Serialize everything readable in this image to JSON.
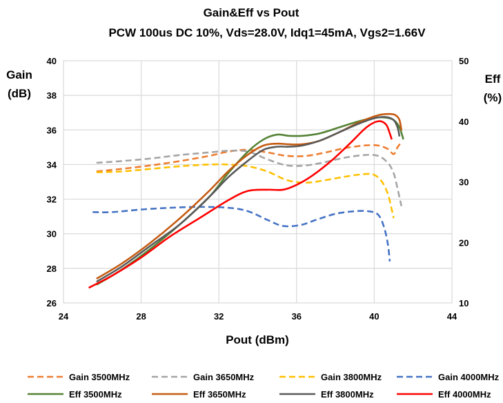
{
  "chart_data": {
    "type": "line",
    "title": "Gain&Eff vs Pout",
    "subtitle": "PCW 100us DC 10%, Vds=28.0V, Idq1=45mA, Vgs2=1.66V",
    "xlabel": "Pout (dBm)",
    "ylabel_left_line1": "Gain",
    "ylabel_left_line2": "(dB)",
    "ylabel_right_line1": "Eff",
    "ylabel_right_line2": "(%)",
    "xlim": [
      24,
      44
    ],
    "ylim_left": [
      26,
      40
    ],
    "ylim_right": [
      10,
      50
    ],
    "x_ticks": [
      24,
      28,
      32,
      36,
      40,
      44
    ],
    "y_left_ticks": [
      26,
      28,
      30,
      32,
      34,
      36,
      38,
      40
    ],
    "y_right_ticks": [
      10,
      20,
      30,
      40,
      50
    ],
    "grid": true,
    "legend_position": "bottom",
    "series": [
      {
        "name": "Gain 3500MHz",
        "axis": "left",
        "style": "dashed",
        "color": "#ED7D31",
        "x": [
          25.7,
          27,
          28.5,
          30,
          31.5,
          32.5,
          33.5,
          34.5,
          35.5,
          36.5,
          37.5,
          38.5,
          39.5,
          40.2,
          40.7,
          41.0,
          41.2,
          41.4
        ],
        "y": [
          33.6,
          33.75,
          33.95,
          34.2,
          34.5,
          34.75,
          34.85,
          34.7,
          34.5,
          34.5,
          34.7,
          34.95,
          35.1,
          35.1,
          34.9,
          34.6,
          35.0,
          35.3
        ]
      },
      {
        "name": "Gain 3650MHz",
        "axis": "left",
        "style": "dashed",
        "color": "#A5A5A5",
        "x": [
          25.7,
          27,
          28.5,
          30,
          31.5,
          32.5,
          33.5,
          34.5,
          35.5,
          36.5,
          37.5,
          38.5,
          39.5,
          40.2,
          40.7,
          41.0,
          41.2,
          41.4
        ],
        "y": [
          34.1,
          34.2,
          34.35,
          34.55,
          34.7,
          34.8,
          34.75,
          34.3,
          33.95,
          33.95,
          34.15,
          34.4,
          34.55,
          34.5,
          34.1,
          33.5,
          32.6,
          31.6
        ]
      },
      {
        "name": "Gain 3800MHz",
        "axis": "left",
        "style": "dashed",
        "color": "#FFC000",
        "x": [
          25.7,
          27,
          28.5,
          30,
          31.5,
          32.5,
          33.5,
          34.5,
          35.5,
          36.5,
          37.5,
          38.5,
          39.5,
          40.0,
          40.4,
          40.7,
          40.9,
          41.0
        ],
        "y": [
          33.55,
          33.6,
          33.75,
          33.9,
          34.0,
          34.0,
          33.9,
          33.6,
          33.1,
          32.95,
          33.1,
          33.3,
          33.45,
          33.4,
          33.0,
          32.3,
          31.4,
          30.9
        ]
      },
      {
        "name": "Gain 4000MHz",
        "axis": "left",
        "style": "dashed",
        "color": "#4472C4",
        "x": [
          25.5,
          26.5,
          28,
          29.5,
          31,
          32.5,
          33.5,
          34.5,
          35.3,
          36.2,
          37.0,
          38.0,
          39.0,
          39.7,
          40.2,
          40.5,
          40.7,
          40.8
        ],
        "y": [
          31.25,
          31.25,
          31.4,
          31.5,
          31.55,
          31.5,
          31.3,
          30.8,
          30.45,
          30.5,
          30.8,
          31.15,
          31.3,
          31.3,
          31.1,
          30.4,
          29.4,
          28.4
        ]
      },
      {
        "name": "Eff 3500MHz",
        "axis": "right",
        "style": "solid",
        "color": "#548235",
        "x": [
          25.7,
          27,
          28.5,
          30,
          31.5,
          32.5,
          33.5,
          34.3,
          35.0,
          35.6,
          36.3,
          37.2,
          38.2,
          39.2,
          40.0,
          40.6,
          41.0,
          41.3,
          41.5
        ],
        "y": [
          13.0,
          15.5,
          19.0,
          23.0,
          27.5,
          31.5,
          35.0,
          37.0,
          37.8,
          37.6,
          37.6,
          38.0,
          39.0,
          40.0,
          40.6,
          40.6,
          40.2,
          39.0,
          37.0
        ]
      },
      {
        "name": "Eff 3650MHz",
        "axis": "right",
        "style": "solid",
        "color": "#C55A11",
        "x": [
          25.7,
          27,
          28.5,
          30,
          31.5,
          32.5,
          33.5,
          34.3,
          35.0,
          35.6,
          36.3,
          37.2,
          38.2,
          39.2,
          40.2,
          40.8,
          41.1,
          41.3,
          41.4
        ],
        "y": [
          14.0,
          16.5,
          20.0,
          24.0,
          28.5,
          31.8,
          34.5,
          36.0,
          36.3,
          36.2,
          36.2,
          36.8,
          38.2,
          39.8,
          41.0,
          41.2,
          41.0,
          40.2,
          38.5
        ]
      },
      {
        "name": "Eff 3800MHz",
        "axis": "right",
        "style": "solid",
        "color": "#595959",
        "x": [
          25.7,
          27,
          28.5,
          30,
          31.5,
          32.5,
          33.5,
          34.3,
          35.0,
          35.6,
          36.3,
          37.2,
          38.2,
          39.2,
          40.0,
          40.6,
          41.0,
          41.2,
          41.3
        ],
        "y": [
          13.5,
          16.0,
          19.5,
          23.0,
          27.5,
          30.8,
          33.5,
          35.3,
          35.8,
          35.8,
          36.0,
          36.8,
          38.2,
          39.6,
          40.5,
          40.7,
          40.2,
          39.0,
          37.5
        ]
      },
      {
        "name": "Eff 4000MHz",
        "axis": "right",
        "style": "solid",
        "color": "#FF0000",
        "x": [
          25.3,
          26.5,
          28,
          29.5,
          31,
          32.5,
          33.5,
          34.5,
          35.3,
          36.0,
          36.8,
          37.8,
          38.8,
          39.6,
          40.2,
          40.6,
          40.8,
          40.9
        ],
        "y": [
          12.5,
          14.5,
          17.5,
          21.0,
          24.0,
          27.0,
          28.5,
          28.7,
          28.7,
          29.5,
          31.0,
          33.5,
          36.5,
          39.0,
          40.0,
          39.5,
          38.0,
          37.0
        ]
      }
    ]
  }
}
